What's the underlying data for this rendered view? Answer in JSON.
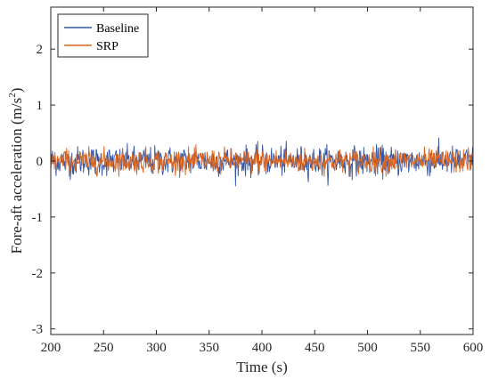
{
  "chart_data": {
    "type": "line",
    "title": "",
    "xlabel": "Time (s)",
    "ylabel_main": "Fore-aft acceleration (m/s",
    "ylabel_sup": "2",
    "ylabel_close": ")",
    "xlim": [
      200,
      600
    ],
    "ylim": [
      -3.1,
      2.75
    ],
    "x_ticks": [
      200,
      250,
      300,
      350,
      400,
      450,
      500,
      550,
      600
    ],
    "y_ticks": [
      -3,
      -2,
      -1,
      0,
      1,
      2
    ],
    "grid": false,
    "legend_position": "top-left",
    "sample_interval_s": 0.5,
    "series": [
      {
        "name": "Baseline",
        "color": "#3457a6",
        "amplitude_std": 0.13,
        "min": -0.45,
        "max": 0.42
      },
      {
        "name": "SRP",
        "color": "#d9651f",
        "amplitude_std": 0.11,
        "min": -0.28,
        "max": 0.3
      }
    ]
  }
}
